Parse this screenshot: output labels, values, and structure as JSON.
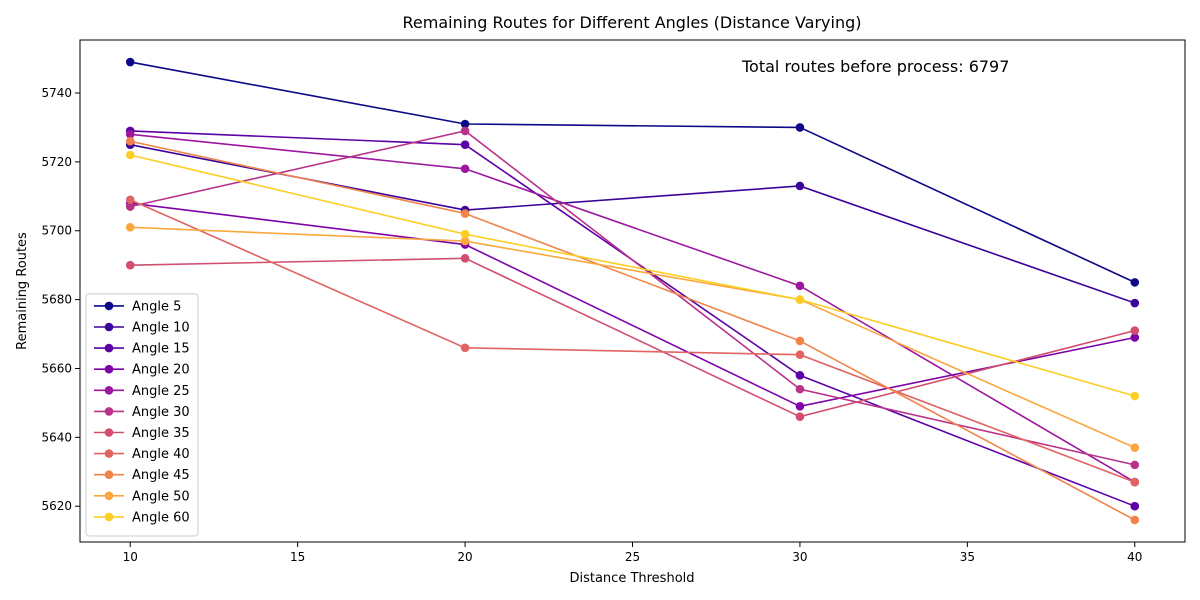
{
  "chart_data": {
    "type": "line",
    "title": "Remaining Routes for Different Angles (Distance Varying)",
    "xlabel": "Distance Threshold",
    "ylabel": "Remaining Routes",
    "xlim": [
      8.5,
      41.5
    ],
    "ylim": [
      5609.6,
      5755.4
    ],
    "xticks": [
      10,
      15,
      20,
      25,
      30,
      35,
      40
    ],
    "yticks": [
      5620,
      5640,
      5660,
      5680,
      5700,
      5720,
      5740
    ],
    "x": [
      10,
      20,
      30,
      40
    ],
    "annotation": "Total routes before process: 6797",
    "legend_position": "lower-left",
    "grid": false,
    "series": [
      {
        "name": "Angle 5",
        "color": "#0d0887",
        "values": [
          5749,
          5731,
          5730,
          5685
        ]
      },
      {
        "name": "Angle 10",
        "color": "#3b049a",
        "values": [
          5725,
          5706,
          5713,
          5679
        ]
      },
      {
        "name": "Angle 15",
        "color": "#5c01a6",
        "values": [
          5729,
          5725,
          5658,
          5620
        ]
      },
      {
        "name": "Angle 20",
        "color": "#7e03a8",
        "values": [
          5708,
          5696,
          5649,
          5669
        ]
      },
      {
        "name": "Angle 25",
        "color": "#9c179e",
        "values": [
          5728,
          5718,
          5684,
          5627
        ]
      },
      {
        "name": "Angle 30",
        "color": "#b93289",
        "values": [
          5707,
          5729,
          5654,
          5632
        ]
      },
      {
        "name": "Angle 35",
        "color": "#d14e6f",
        "values": [
          5690,
          5692,
          5646,
          5671
        ]
      },
      {
        "name": "Angle 40",
        "color": "#e16462",
        "values": [
          5709,
          5666,
          5664,
          5627
        ]
      },
      {
        "name": "Angle 45",
        "color": "#f0844b",
        "values": [
          5726,
          5705,
          5668,
          5616
        ]
      },
      {
        "name": "Angle 50",
        "color": "#f9a73e",
        "values": [
          5701,
          5697,
          5680,
          5637
        ]
      },
      {
        "name": "Angle 60",
        "color": "#fccd25",
        "values": [
          5722,
          5699,
          5680,
          5652
        ]
      }
    ]
  }
}
